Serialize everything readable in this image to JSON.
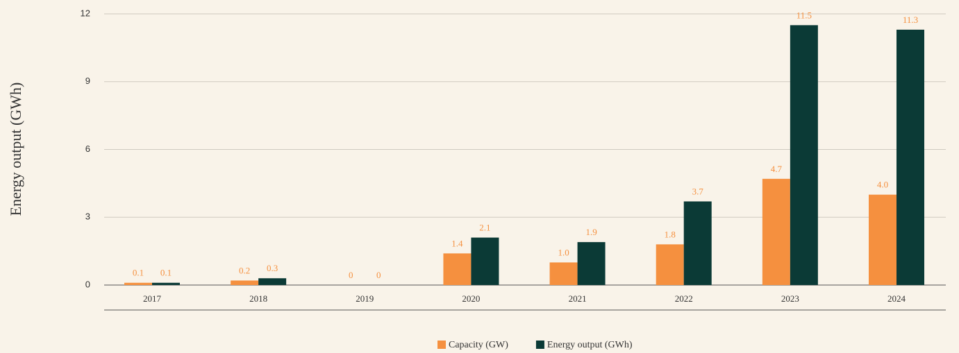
{
  "chart_data": {
    "type": "bar",
    "y_label": "Energy output (GWh)",
    "categories": [
      "2017",
      "2018",
      "2019",
      "2020",
      "2021",
      "2022",
      "2023",
      "2024"
    ],
    "series": [
      {
        "name": "Capacity (GW)",
        "color": "#f5903f",
        "values": [
          0.1,
          0.2,
          0,
          1.4,
          1.0,
          1.8,
          4.7,
          4.0
        ],
        "value_labels": [
          "0.1",
          "0.2",
          "0",
          "1.4",
          "1.0",
          "1.8",
          "4.7",
          "4.0"
        ]
      },
      {
        "name": "Energy output (GWh)",
        "color": "#0b3a36",
        "values": [
          0.1,
          0.3,
          0,
          2.1,
          1.9,
          3.7,
          11.5,
          11.3
        ],
        "value_labels": [
          "0.1",
          "0.3",
          "0",
          "2.1",
          "1.9",
          "3.7",
          "11.5",
          "11.3"
        ]
      }
    ],
    "ylim": [
      0,
      12
    ],
    "yticks": [
      0,
      3,
      6,
      9,
      12
    ],
    "grid": true,
    "legend": "bottom"
  }
}
